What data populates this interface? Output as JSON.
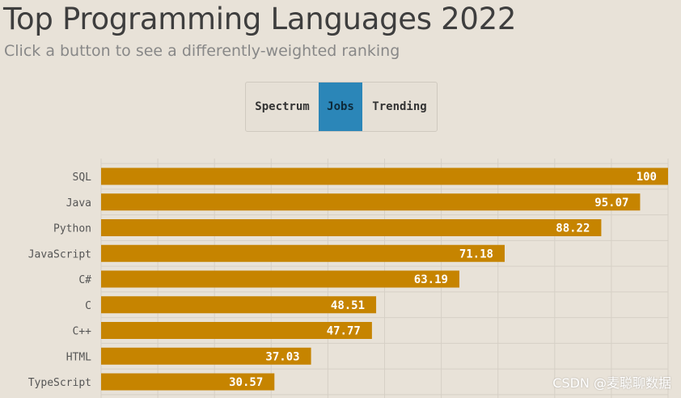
{
  "title": "Top Programming Languages 2022",
  "subtitle": "Click a button to see a differently-weighted ranking",
  "buttons": [
    {
      "label": "Spectrum",
      "active": false
    },
    {
      "label": "Jobs",
      "active": true
    },
    {
      "label": "Trending",
      "active": false
    }
  ],
  "watermark": "CSDN @麦聪聊数据",
  "colors": {
    "bar": "#c68400",
    "active_button": "#2b86b8",
    "background": "#e8e2d8",
    "grid": "#d6d0c6"
  },
  "chart_data": {
    "type": "bar",
    "orientation": "horizontal",
    "categories": [
      "SQL",
      "Java",
      "Python",
      "JavaScript",
      "C#",
      "C",
      "C++",
      "HTML",
      "TypeScript"
    ],
    "values": [
      100,
      95.07,
      88.22,
      71.18,
      63.19,
      48.51,
      47.77,
      37.03,
      30.57
    ],
    "data_labels": [
      "100",
      "95.07",
      "88.22",
      "71.18",
      "63.19",
      "48.51",
      "47.77",
      "37.03",
      "30.57"
    ],
    "xlim": [
      0,
      100
    ],
    "grid": true,
    "legend": "none"
  }
}
